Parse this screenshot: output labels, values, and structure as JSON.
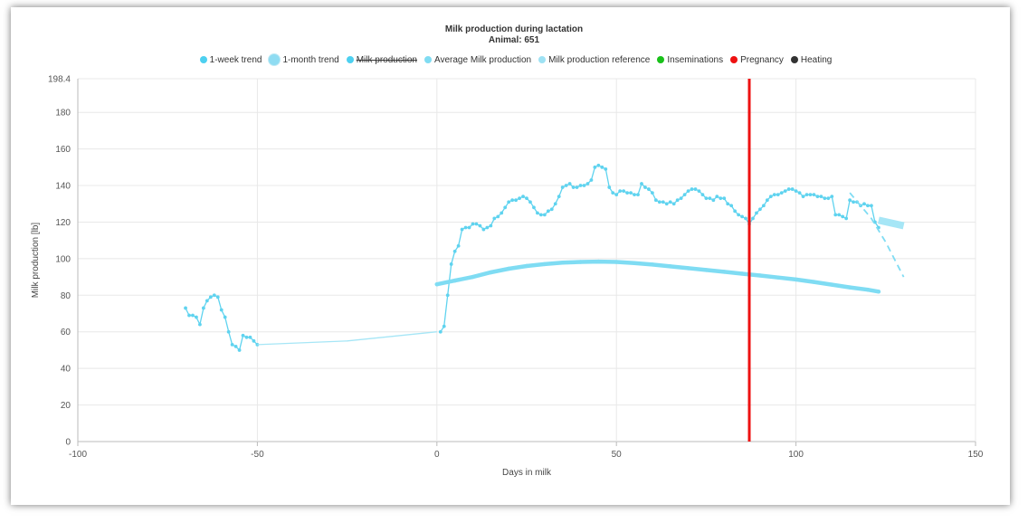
{
  "chart_data": {
    "type": "line",
    "title": "Milk production during lactation",
    "subtitle": "Animal: 651",
    "xlabel": "Days in milk",
    "ylabel": "Milk production [lb]",
    "xlim": [
      -100,
      150
    ],
    "ylim": [
      0,
      198.4
    ],
    "x_ticks": [
      "-100",
      "-50",
      "0",
      "50",
      "100",
      "150"
    ],
    "y_ticks": [
      "0",
      "20",
      "40",
      "60",
      "80",
      "100",
      "120",
      "140",
      "160",
      "180",
      "198.4"
    ],
    "grid": true,
    "legend_position": "top",
    "legend": [
      {
        "label": "1-week trend",
        "color": "#4dd0f0",
        "marker": "dot",
        "struck": false
      },
      {
        "label": "1-month trend",
        "color": "#8fdcf2",
        "marker": "big",
        "struck": false
      },
      {
        "label": "Milk production",
        "color": "#4dd0f0",
        "marker": "dot",
        "struck": true
      },
      {
        "label": "Average Milk production",
        "color": "#80dcf2",
        "marker": "dot",
        "struck": false
      },
      {
        "label": "Milk production reference",
        "color": "#9ee2f4",
        "marker": "dot",
        "struck": false
      },
      {
        "label": "Inseminations",
        "color": "#19c11a",
        "marker": "dot",
        "struck": false
      },
      {
        "label": "Pregnancy",
        "color": "#ee1111",
        "marker": "dot",
        "struck": false
      },
      {
        "label": "Heating",
        "color": "#333333",
        "marker": "dot",
        "struck": false
      }
    ],
    "series": [
      {
        "name": "1-week trend",
        "color": "#5fd3ef",
        "style": "line-markers",
        "points": [
          [
            -70,
            73
          ],
          [
            -69,
            69
          ],
          [
            -68,
            69
          ],
          [
            -67,
            68
          ],
          [
            -66,
            64
          ],
          [
            -65,
            73
          ],
          [
            -64,
            77
          ],
          [
            -63,
            79
          ],
          [
            -62,
            80
          ],
          [
            -61,
            79
          ],
          [
            -60,
            72
          ],
          [
            -59,
            68
          ],
          [
            -58,
            60
          ],
          [
            -57,
            53
          ],
          [
            -56,
            52
          ],
          [
            -55,
            50
          ],
          [
            -54,
            58
          ],
          [
            -53,
            57
          ],
          [
            -52,
            57
          ],
          [
            -51,
            55
          ],
          [
            -50,
            53
          ],
          [
            1,
            60
          ],
          [
            2,
            63
          ],
          [
            3,
            80
          ],
          [
            4,
            97
          ],
          [
            5,
            104
          ],
          [
            6,
            107
          ],
          [
            7,
            116
          ],
          [
            8,
            117
          ],
          [
            9,
            117
          ],
          [
            10,
            119
          ],
          [
            11,
            119
          ],
          [
            12,
            118
          ],
          [
            13,
            116
          ],
          [
            14,
            117
          ],
          [
            15,
            118
          ],
          [
            16,
            122
          ],
          [
            17,
            123
          ],
          [
            18,
            125
          ],
          [
            19,
            128
          ],
          [
            20,
            131
          ],
          [
            21,
            132
          ],
          [
            22,
            132
          ],
          [
            23,
            133
          ],
          [
            24,
            134
          ],
          [
            25,
            133
          ],
          [
            26,
            131
          ],
          [
            27,
            128
          ],
          [
            28,
            125
          ],
          [
            29,
            124
          ],
          [
            30,
            124
          ],
          [
            31,
            126
          ],
          [
            32,
            127
          ],
          [
            33,
            130
          ],
          [
            34,
            134
          ],
          [
            35,
            139
          ],
          [
            36,
            140
          ],
          [
            37,
            141
          ],
          [
            38,
            139
          ],
          [
            39,
            139
          ],
          [
            40,
            140
          ],
          [
            41,
            140
          ],
          [
            42,
            141
          ],
          [
            43,
            143
          ],
          [
            44,
            150
          ],
          [
            45,
            151
          ],
          [
            46,
            150
          ],
          [
            47,
            149
          ],
          [
            48,
            139
          ],
          [
            49,
            136
          ],
          [
            50,
            135
          ],
          [
            51,
            137
          ],
          [
            52,
            137
          ],
          [
            53,
            136
          ],
          [
            54,
            136
          ],
          [
            55,
            135
          ],
          [
            56,
            135
          ],
          [
            57,
            141
          ],
          [
            58,
            139
          ],
          [
            59,
            138
          ],
          [
            60,
            136
          ],
          [
            61,
            132
          ],
          [
            62,
            131
          ],
          [
            63,
            131
          ],
          [
            64,
            130
          ],
          [
            65,
            131
          ],
          [
            66,
            130
          ],
          [
            67,
            132
          ],
          [
            68,
            133
          ],
          [
            69,
            135
          ],
          [
            70,
            137
          ],
          [
            71,
            138
          ],
          [
            72,
            138
          ],
          [
            73,
            137
          ],
          [
            74,
            135
          ],
          [
            75,
            133
          ],
          [
            76,
            133
          ],
          [
            77,
            132
          ],
          [
            78,
            134
          ],
          [
            79,
            133
          ],
          [
            80,
            133
          ],
          [
            81,
            130
          ],
          [
            82,
            129
          ],
          [
            83,
            126
          ],
          [
            84,
            124
          ],
          [
            85,
            123
          ],
          [
            86,
            122
          ],
          [
            87,
            119
          ],
          [
            88,
            122
          ],
          [
            89,
            125
          ],
          [
            90,
            127
          ],
          [
            91,
            129
          ],
          [
            92,
            132
          ],
          [
            93,
            134
          ],
          [
            94,
            135
          ],
          [
            95,
            135
          ],
          [
            96,
            136
          ],
          [
            97,
            137
          ],
          [
            98,
            138
          ],
          [
            99,
            138
          ],
          [
            100,
            137
          ],
          [
            101,
            136
          ],
          [
            102,
            134
          ],
          [
            103,
            135
          ],
          [
            104,
            135
          ],
          [
            105,
            135
          ],
          [
            106,
            134
          ],
          [
            107,
            134
          ],
          [
            108,
            133
          ],
          [
            109,
            133
          ],
          [
            110,
            134
          ],
          [
            111,
            124
          ],
          [
            112,
            124
          ],
          [
            113,
            123
          ],
          [
            114,
            122
          ],
          [
            115,
            132
          ],
          [
            116,
            131
          ],
          [
            117,
            131
          ],
          [
            118,
            129
          ],
          [
            119,
            130
          ],
          [
            120,
            129
          ],
          [
            121,
            129
          ],
          [
            122,
            120
          ],
          [
            123,
            117
          ]
        ]
      },
      {
        "name": "Average Milk production",
        "color": "#7fdcf3",
        "style": "thick-line",
        "points": [
          [
            0,
            86
          ],
          [
            5,
            88
          ],
          [
            10,
            90
          ],
          [
            15,
            92.5
          ],
          [
            20,
            94.5
          ],
          [
            25,
            96
          ],
          [
            30,
            97
          ],
          [
            35,
            97.8
          ],
          [
            40,
            98.2
          ],
          [
            45,
            98.4
          ],
          [
            50,
            98.2
          ],
          [
            55,
            97.6
          ],
          [
            60,
            96.8
          ],
          [
            65,
            95.8
          ],
          [
            70,
            94.8
          ],
          [
            75,
            93.8
          ],
          [
            80,
            92.8
          ],
          [
            85,
            91.8
          ],
          [
            90,
            90.8
          ],
          [
            95,
            89.7
          ],
          [
            100,
            88.6
          ],
          [
            105,
            87.3
          ],
          [
            110,
            85.8
          ],
          [
            115,
            84.3
          ],
          [
            120,
            83
          ],
          [
            123,
            82
          ]
        ]
      },
      {
        "name": "1-month trend",
        "color": "#a6e6f6",
        "style": "thin-line",
        "points": [
          [
            -50,
            53
          ],
          [
            -25,
            55
          ],
          [
            0,
            60
          ]
        ]
      },
      {
        "name": "Milk production reference",
        "color": "#7fdcf3",
        "style": "dashed",
        "points": [
          [
            115,
            136
          ],
          [
            121,
            122
          ],
          [
            125,
            109
          ],
          [
            130,
            90
          ]
        ]
      },
      {
        "name": "1-month trend projection",
        "color": "#a6e6f6",
        "style": "band",
        "points": [
          [
            123,
            121
          ],
          [
            130,
            118
          ]
        ]
      }
    ],
    "events": [
      {
        "type": "Pregnancy",
        "x": 87,
        "color": "#ee1111"
      }
    ]
  }
}
